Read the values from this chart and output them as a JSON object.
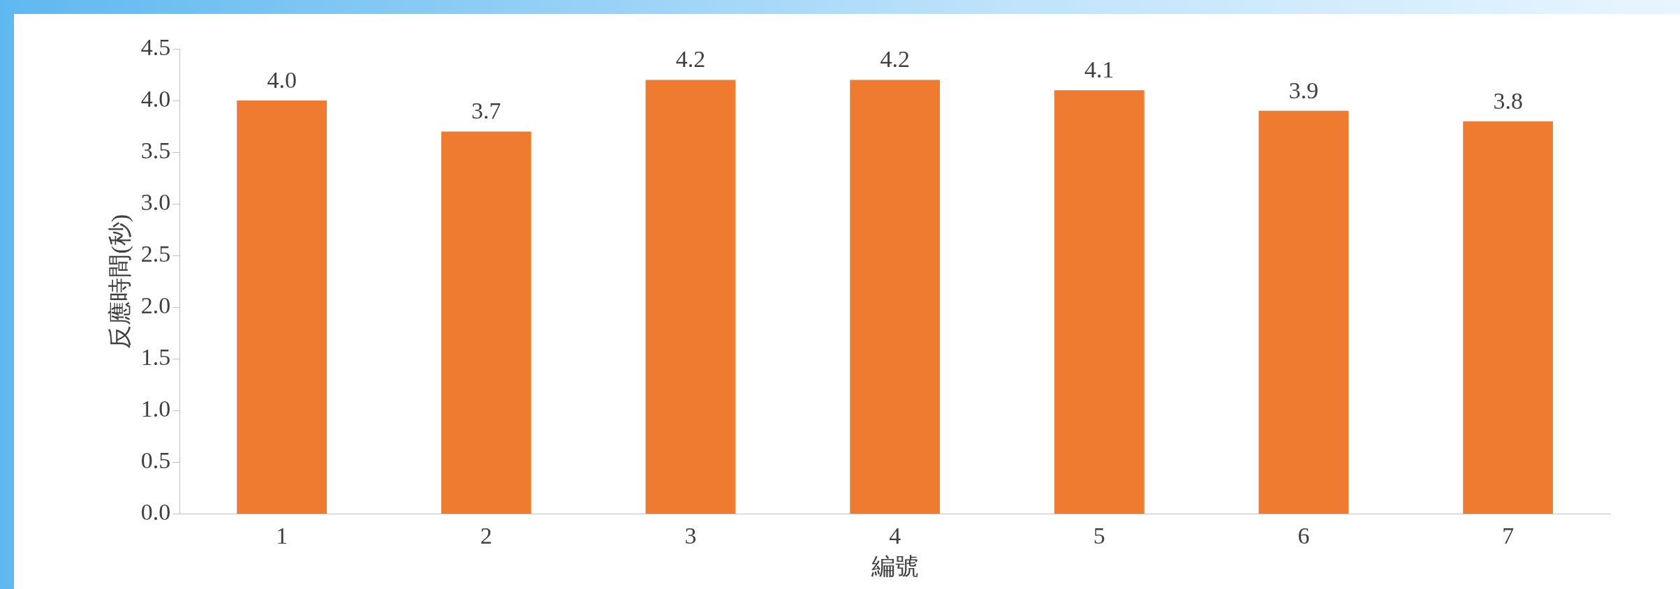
{
  "chart_data": {
    "type": "bar",
    "xlabel": "編號",
    "ylabel": "反應時間(秒)",
    "categories": [
      "1",
      "2",
      "3",
      "4",
      "5",
      "6",
      "7"
    ],
    "values": [
      4.0,
      3.7,
      4.2,
      4.2,
      4.1,
      3.9,
      3.8
    ],
    "value_labels": [
      "4.0",
      "3.7",
      "4.2",
      "4.2",
      "4.1",
      "3.9",
      "3.8"
    ],
    "color": "#ee7b30",
    "ylim": [
      0,
      4.5
    ],
    "yticks": [
      {
        "value": 0,
        "label": "0.0"
      },
      0.5,
      {
        "value": 1,
        "label": "1.0"
      },
      1.5,
      {
        "value": 2,
        "label": "2.0"
      },
      2.5,
      {
        "value": 3,
        "label": "3.0"
      },
      3.5,
      {
        "value": 4,
        "label": "4.0"
      },
      4.5
    ],
    "grid": false,
    "legend": false
  }
}
